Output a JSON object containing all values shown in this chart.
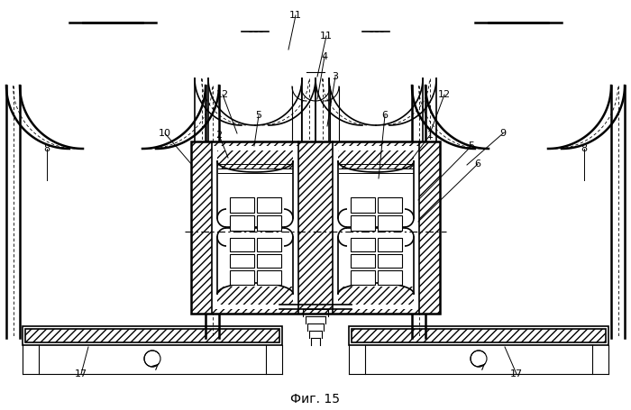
{
  "title": "Фиг. 15",
  "bg_color": "#ffffff",
  "line_color": "#000000",
  "fig_width": 7.0,
  "fig_height": 4.55,
  "dpi": 100
}
